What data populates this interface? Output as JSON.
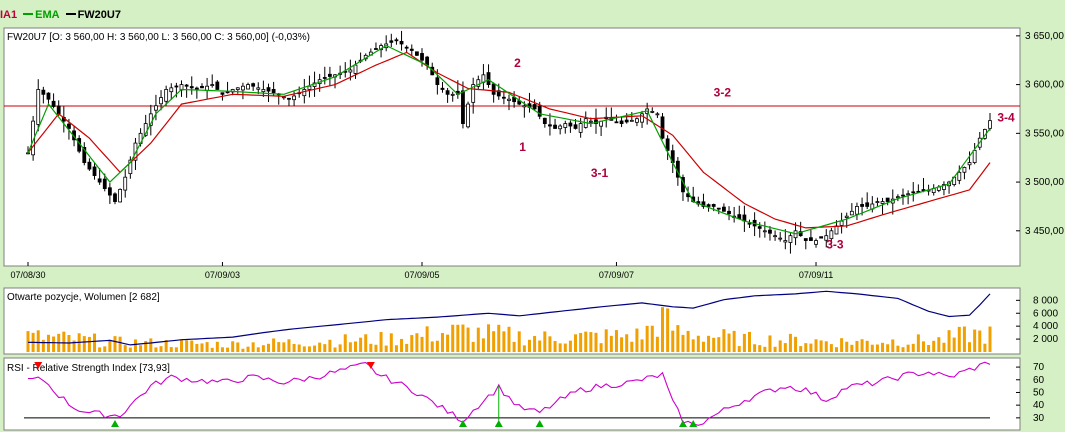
{
  "legend": [
    {
      "label": "IA1",
      "color": "#c0003c"
    },
    {
      "label": "EMA",
      "color": "#00a000"
    },
    {
      "label": "FW20U7",
      "color": "#000000"
    }
  ],
  "price_panel": {
    "header": "FW20U7 [O: 3 560,00  H: 3 560,00  L: 3 560,00  C: 3 560,00] (-0,03%)",
    "y_ticks": [
      "3 650,00",
      "3 600,00",
      "3 550,00",
      "3 500,00",
      "3 450,00"
    ],
    "y_values": [
      3650,
      3600,
      3550,
      3500,
      3450
    ],
    "ylim": [
      3418,
      3656
    ],
    "hline": 3578,
    "x_labels": [
      "07/08/30",
      "07/09/03",
      "07/09/05",
      "07/09/07",
      "07/09/11"
    ],
    "annotations": [
      "2",
      "1",
      "3-1",
      "3-2",
      "3-3",
      "3-4"
    ]
  },
  "volume_panel": {
    "header": "Otwarte pozycje, Wolumen [2 682]",
    "y_ticks": [
      "8 000",
      "6 000",
      "4 000",
      "2 000"
    ],
    "y_values": [
      8000,
      6000,
      4000,
      2000
    ],
    "ylim": [
      0,
      9600
    ]
  },
  "rsi_panel": {
    "header": "RSI - Relative Strength Index [73,93]",
    "y_ticks": [
      "70",
      "60",
      "50",
      "40",
      "30"
    ],
    "y_values": [
      70,
      60,
      50,
      40,
      30
    ],
    "ylim": [
      22,
      74
    ],
    "hline": 30
  },
  "colors": {
    "background": "#d4f0c4",
    "panel": "#ffffff",
    "candle": "#000000",
    "ema_short": "#00a000",
    "ema_long": "#cc0000",
    "annotation": "#b0003c",
    "volume_bar": "#f0a000",
    "open_interest": "#000080",
    "rsi": "#cc00cc",
    "signal_up": "#00b000",
    "signal_down": "#ff0000"
  },
  "chart_data": {
    "type": "line",
    "title": "FW20U7",
    "x_labels": [
      "07/08/30",
      "07/09/03",
      "07/09/05",
      "07/09/07",
      "07/09/11"
    ],
    "series": [
      {
        "name": "FW20U7",
        "anchors": [
          [
            0,
            3530
          ],
          [
            2,
            3595
          ],
          [
            4,
            3585
          ],
          [
            6,
            3570
          ],
          [
            8,
            3555
          ],
          [
            11,
            3520
          ],
          [
            14,
            3500
          ],
          [
            17,
            3480
          ],
          [
            19,
            3505
          ],
          [
            21,
            3540
          ],
          [
            24,
            3570
          ],
          [
            27,
            3595
          ],
          [
            30,
            3600
          ],
          [
            33,
            3595
          ],
          [
            36,
            3600
          ],
          [
            38,
            3590
          ],
          [
            40,
            3595
          ],
          [
            43,
            3600
          ],
          [
            46,
            3595
          ],
          [
            49,
            3590
          ],
          [
            51,
            3585
          ],
          [
            54,
            3595
          ],
          [
            57,
            3605
          ],
          [
            60,
            3610
          ],
          [
            63,
            3615
          ],
          [
            66,
            3630
          ],
          [
            69,
            3640
          ],
          [
            72,
            3645
          ],
          [
            75,
            3635
          ],
          [
            78,
            3620
          ],
          [
            80,
            3600
          ],
          [
            82,
            3590
          ],
          [
            84,
            3590
          ],
          [
            85,
            3560
          ],
          [
            87,
            3600
          ],
          [
            89,
            3610
          ],
          [
            91,
            3590
          ],
          [
            94,
            3585
          ],
          [
            96,
            3580
          ],
          [
            99,
            3575
          ],
          [
            101,
            3560
          ],
          [
            103,
            3555
          ],
          [
            105,
            3560
          ],
          [
            107,
            3555
          ],
          [
            109,
            3565
          ],
          [
            111,
            3560
          ],
          [
            113,
            3565
          ],
          [
            116,
            3560
          ],
          [
            119,
            3565
          ],
          [
            121,
            3575
          ],
          [
            123,
            3570
          ],
          [
            124,
            3545
          ],
          [
            126,
            3520
          ],
          [
            128,
            3490
          ],
          [
            130,
            3480
          ],
          [
            132,
            3475
          ],
          [
            134,
            3475
          ],
          [
            136,
            3470
          ],
          [
            138,
            3465
          ],
          [
            140,
            3460
          ],
          [
            142,
            3455
          ],
          [
            144,
            3450
          ],
          [
            146,
            3445
          ],
          [
            148,
            3440
          ],
          [
            150,
            3450
          ],
          [
            152,
            3440
          ],
          [
            154,
            3440
          ],
          [
            156,
            3445
          ],
          [
            158,
            3455
          ],
          [
            160,
            3465
          ],
          [
            162,
            3475
          ],
          [
            164,
            3475
          ],
          [
            166,
            3480
          ],
          [
            168,
            3480
          ],
          [
            170,
            3485
          ],
          [
            172,
            3488
          ],
          [
            174,
            3490
          ],
          [
            176,
            3492
          ],
          [
            178,
            3495
          ],
          [
            180,
            3500
          ],
          [
            182,
            3510
          ],
          [
            184,
            3520
          ],
          [
            186,
            3545
          ],
          [
            188,
            3563
          ]
        ]
      },
      {
        "name": "EMA",
        "anchors": [
          [
            0,
            3530
          ],
          [
            4,
            3580
          ],
          [
            10,
            3540
          ],
          [
            16,
            3500
          ],
          [
            20,
            3520
          ],
          [
            25,
            3570
          ],
          [
            30,
            3595
          ],
          [
            40,
            3593
          ],
          [
            50,
            3590
          ],
          [
            60,
            3608
          ],
          [
            70,
            3640
          ],
          [
            78,
            3620
          ],
          [
            84,
            3590
          ],
          [
            90,
            3605
          ],
          [
            100,
            3570
          ],
          [
            110,
            3560
          ],
          [
            121,
            3573
          ],
          [
            126,
            3520
          ],
          [
            130,
            3480
          ],
          [
            140,
            3460
          ],
          [
            150,
            3447
          ],
          [
            160,
            3462
          ],
          [
            170,
            3483
          ],
          [
            180,
            3498
          ],
          [
            188,
            3555
          ]
        ]
      },
      {
        "name": "IA1",
        "anchors": [
          [
            0,
            3530
          ],
          [
            6,
            3570
          ],
          [
            12,
            3545
          ],
          [
            18,
            3510
          ],
          [
            24,
            3540
          ],
          [
            30,
            3580
          ],
          [
            40,
            3590
          ],
          [
            50,
            3588
          ],
          [
            60,
            3600
          ],
          [
            68,
            3620
          ],
          [
            74,
            3633
          ],
          [
            80,
            3612
          ],
          [
            86,
            3596
          ],
          [
            94,
            3592
          ],
          [
            102,
            3575
          ],
          [
            110,
            3565
          ],
          [
            120,
            3568
          ],
          [
            126,
            3548
          ],
          [
            132,
            3510
          ],
          [
            140,
            3478
          ],
          [
            146,
            3462
          ],
          [
            152,
            3453
          ],
          [
            160,
            3455
          ],
          [
            168,
            3468
          ],
          [
            176,
            3480
          ],
          [
            184,
            3492
          ],
          [
            188,
            3520
          ]
        ]
      }
    ],
    "open_interest": {
      "anchors": [
        [
          0,
          1500
        ],
        [
          8,
          1400
        ],
        [
          16,
          1800
        ],
        [
          20,
          1100
        ],
        [
          24,
          1400
        ],
        [
          30,
          1900
        ],
        [
          40,
          2300
        ],
        [
          46,
          3000
        ],
        [
          52,
          3600
        ],
        [
          60,
          4200
        ],
        [
          70,
          5000
        ],
        [
          80,
          5400
        ],
        [
          90,
          6000
        ],
        [
          96,
          5600
        ],
        [
          104,
          6300
        ],
        [
          112,
          7000
        ],
        [
          120,
          7600
        ],
        [
          126,
          7000
        ],
        [
          130,
          6800
        ],
        [
          136,
          8100
        ],
        [
          142,
          8700
        ],
        [
          150,
          9000
        ],
        [
          156,
          9400
        ],
        [
          162,
          9000
        ],
        [
          170,
          8300
        ],
        [
          176,
          6300
        ],
        [
          180,
          5500
        ],
        [
          184,
          5700
        ],
        [
          186,
          7300
        ],
        [
          188,
          9000
        ]
      ]
    },
    "volume": {
      "anchors": [
        [
          0,
          2400
        ],
        [
          10,
          2000
        ],
        [
          18,
          1500
        ],
        [
          24,
          1400
        ],
        [
          40,
          1200
        ],
        [
          55,
          1600
        ],
        [
          70,
          2000
        ],
        [
          80,
          2800
        ],
        [
          84,
          3200
        ],
        [
          100,
          2200
        ],
        [
          120,
          2600
        ],
        [
          124,
          5200
        ],
        [
          127,
          3000
        ],
        [
          140,
          2000
        ],
        [
          160,
          1600
        ],
        [
          178,
          1800
        ],
        [
          184,
          2800
        ],
        [
          188,
          2700
        ]
      ]
    },
    "rsi": {
      "anchors": [
        [
          0,
          60
        ],
        [
          3,
          60
        ],
        [
          6,
          48
        ],
        [
          9,
          38
        ],
        [
          12,
          34
        ],
        [
          16,
          32
        ],
        [
          18,
          32
        ],
        [
          20,
          40
        ],
        [
          24,
          55
        ],
        [
          28,
          62
        ],
        [
          32,
          60
        ],
        [
          38,
          58
        ],
        [
          44,
          62
        ],
        [
          50,
          58
        ],
        [
          56,
          62
        ],
        [
          62,
          68
        ],
        [
          66,
          72
        ],
        [
          69,
          63
        ],
        [
          72,
          58
        ],
        [
          76,
          50
        ],
        [
          82,
          35
        ],
        [
          85,
          28
        ],
        [
          88,
          40
        ],
        [
          92,
          54
        ],
        [
          96,
          38
        ],
        [
          100,
          34
        ],
        [
          104,
          44
        ],
        [
          108,
          52
        ],
        [
          112,
          55
        ],
        [
          118,
          58
        ],
        [
          124,
          64
        ],
        [
          126,
          42
        ],
        [
          128,
          28
        ],
        [
          130,
          24
        ],
        [
          132,
          27
        ],
        [
          136,
          36
        ],
        [
          140,
          44
        ],
        [
          144,
          50
        ],
        [
          148,
          55
        ],
        [
          152,
          52
        ],
        [
          156,
          44
        ],
        [
          160,
          54
        ],
        [
          166,
          58
        ],
        [
          172,
          64
        ],
        [
          176,
          66
        ],
        [
          180,
          62
        ],
        [
          184,
          68
        ],
        [
          188,
          73.93
        ]
      ]
    },
    "ylim": [
      3418,
      3656
    ],
    "grid": false,
    "legend": "top-left"
  }
}
